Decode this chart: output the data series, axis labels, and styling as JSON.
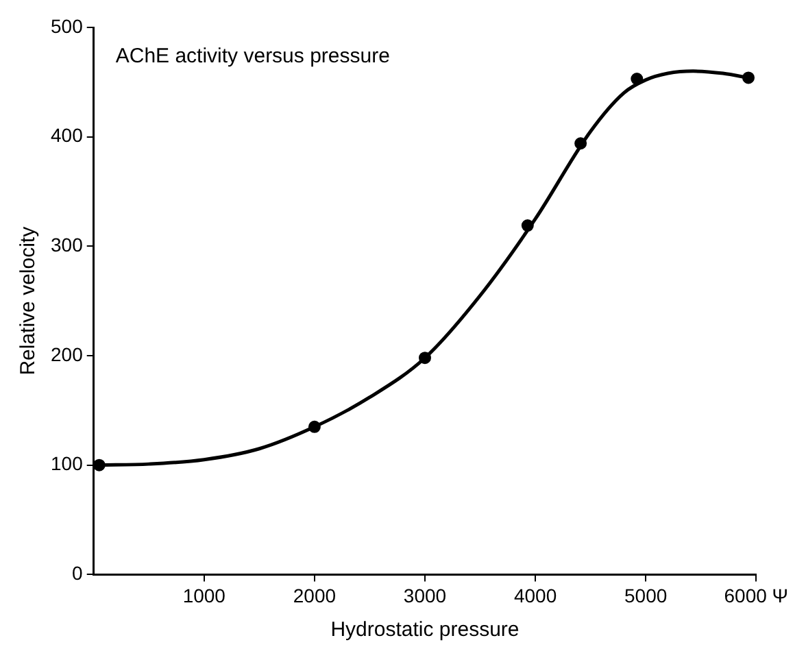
{
  "chart_data": {
    "type": "scatter",
    "xlabel": "Hydrostatic pressure",
    "ylabel": "Relative velocity",
    "annotations": [
      "AChE activity versus pressure"
    ],
    "xlim": [
      0,
      6000
    ],
    "xticks": [
      1000,
      2000,
      3000,
      4000,
      5000,
      {
        "value": 6000,
        "label": "6000 Ψ"
      }
    ],
    "ylim": [
      0,
      500
    ],
    "yticks": [
      0,
      100,
      200,
      300,
      400,
      500
    ],
    "grid": false,
    "legend": false,
    "series": [
      {
        "color": "#000000",
        "marker": "circle",
        "x": [
          50,
          2000,
          3000,
          3930,
          4410,
          4920,
          5930
        ],
        "values": [
          100,
          135,
          198,
          319,
          394,
          453,
          454
        ]
      },
      {
        "type": "line",
        "color": "#000000",
        "marker": "none",
        "line_style": "solid",
        "x": [
          50,
          500,
          1000,
          1500,
          2000,
          2500,
          3000,
          3500,
          4000,
          4500,
          4800,
          5000,
          5200,
          5430,
          5700,
          5930
        ],
        "values": [
          100,
          101,
          105,
          115,
          135,
          162,
          198,
          255,
          325,
          405,
          440,
          452,
          458,
          460,
          458,
          454
        ]
      }
    ]
  }
}
